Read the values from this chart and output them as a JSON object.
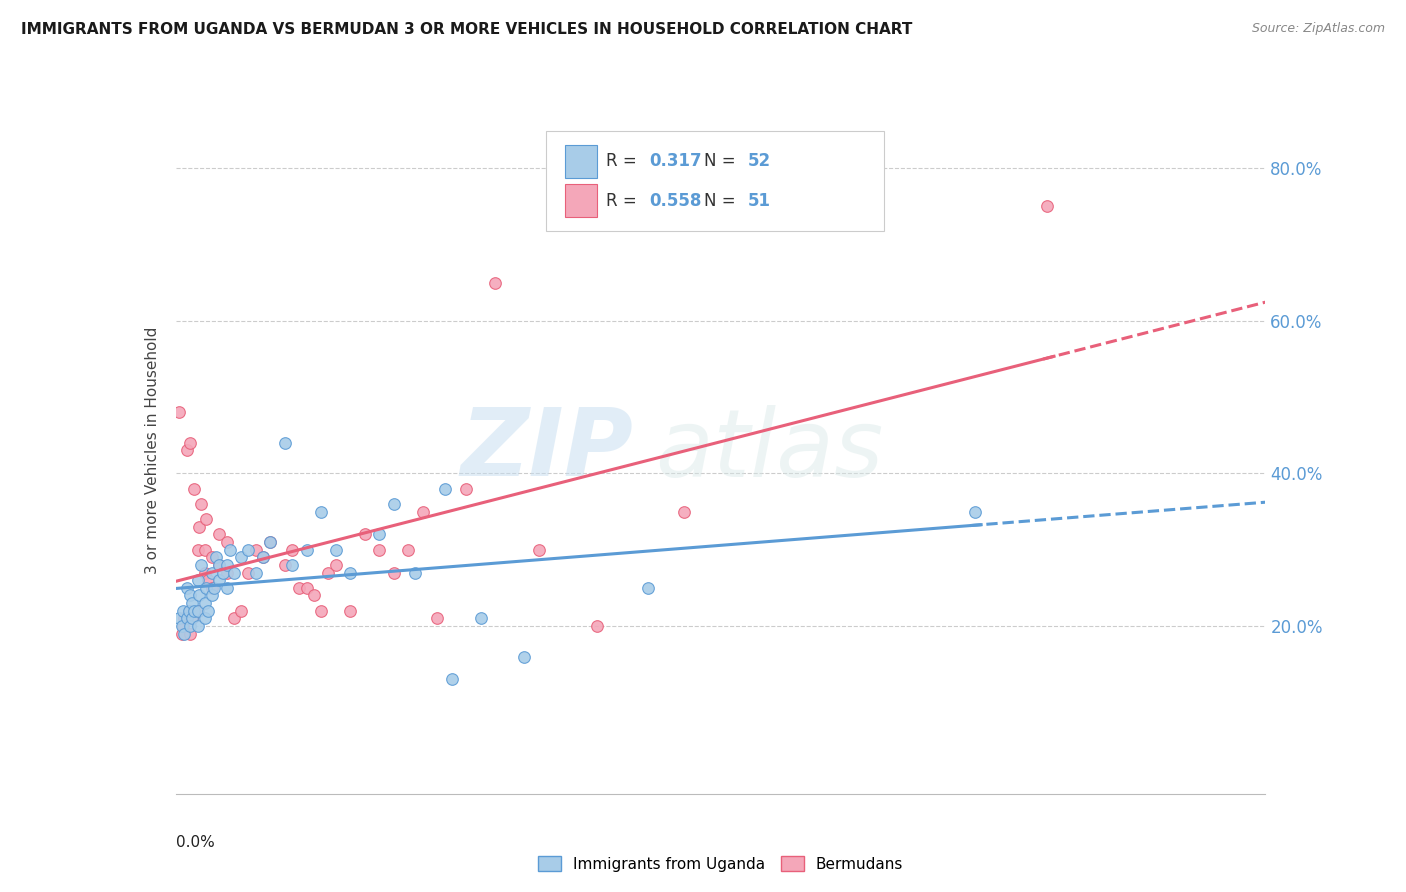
{
  "title": "IMMIGRANTS FROM UGANDA VS BERMUDAN 3 OR MORE VEHICLES IN HOUSEHOLD CORRELATION CHART",
  "source": "Source: ZipAtlas.com",
  "ylabel": "3 or more Vehicles in Household",
  "legend_label1": "Immigrants from Uganda",
  "legend_label2": "Bermudans",
  "r1": "0.317",
  "n1": "52",
  "r2": "0.558",
  "n2": "51",
  "color_blue": "#a8cce8",
  "color_blue_edge": "#5b9bd5",
  "color_pink": "#f4a7b9",
  "color_pink_edge": "#e8607a",
  "color_reg_blue": "#5b9bd5",
  "color_reg_pink": "#e8607a",
  "xmin": 0.0,
  "xmax": 0.15,
  "ymin": -0.02,
  "ymax": 0.88,
  "ytick_vals": [
    0.2,
    0.4,
    0.6,
    0.8
  ],
  "ytick_labels": [
    "20.0%",
    "40.0%",
    "60.0%",
    "80.0%"
  ],
  "watermark_zip": "ZIP",
  "watermark_atlas": "atlas",
  "uganda_x": [
    0.0005,
    0.0008,
    0.001,
    0.0012,
    0.0015,
    0.0015,
    0.0018,
    0.002,
    0.002,
    0.0022,
    0.0022,
    0.0025,
    0.003,
    0.003,
    0.003,
    0.0032,
    0.0035,
    0.004,
    0.004,
    0.0042,
    0.0045,
    0.005,
    0.005,
    0.0052,
    0.0055,
    0.006,
    0.006,
    0.0065,
    0.007,
    0.007,
    0.0075,
    0.008,
    0.009,
    0.01,
    0.011,
    0.012,
    0.013,
    0.015,
    0.016,
    0.018,
    0.02,
    0.022,
    0.024,
    0.028,
    0.03,
    0.033,
    0.037,
    0.038,
    0.042,
    0.048,
    0.065,
    0.11
  ],
  "uganda_y": [
    0.21,
    0.2,
    0.22,
    0.19,
    0.21,
    0.25,
    0.22,
    0.2,
    0.24,
    0.21,
    0.23,
    0.22,
    0.2,
    0.22,
    0.26,
    0.24,
    0.28,
    0.21,
    0.23,
    0.25,
    0.22,
    0.24,
    0.27,
    0.25,
    0.29,
    0.26,
    0.28,
    0.27,
    0.25,
    0.28,
    0.3,
    0.27,
    0.29,
    0.3,
    0.27,
    0.29,
    0.31,
    0.44,
    0.28,
    0.3,
    0.35,
    0.3,
    0.27,
    0.32,
    0.36,
    0.27,
    0.38,
    0.13,
    0.21,
    0.16,
    0.25,
    0.35
  ],
  "bermuda_x": [
    0.0005,
    0.0008,
    0.001,
    0.0012,
    0.0015,
    0.0018,
    0.002,
    0.002,
    0.0022,
    0.0025,
    0.003,
    0.003,
    0.0032,
    0.0035,
    0.004,
    0.004,
    0.0042,
    0.0045,
    0.005,
    0.005,
    0.006,
    0.006,
    0.007,
    0.007,
    0.008,
    0.009,
    0.01,
    0.011,
    0.012,
    0.013,
    0.015,
    0.016,
    0.017,
    0.018,
    0.019,
    0.02,
    0.021,
    0.022,
    0.024,
    0.026,
    0.028,
    0.03,
    0.032,
    0.034,
    0.036,
    0.04,
    0.044,
    0.05,
    0.058,
    0.07,
    0.12
  ],
  "bermuda_y": [
    0.48,
    0.19,
    0.2,
    0.21,
    0.43,
    0.22,
    0.44,
    0.19,
    0.21,
    0.38,
    0.22,
    0.3,
    0.33,
    0.36,
    0.27,
    0.3,
    0.34,
    0.26,
    0.25,
    0.29,
    0.28,
    0.32,
    0.27,
    0.31,
    0.21,
    0.22,
    0.27,
    0.3,
    0.29,
    0.31,
    0.28,
    0.3,
    0.25,
    0.25,
    0.24,
    0.22,
    0.27,
    0.28,
    0.22,
    0.32,
    0.3,
    0.27,
    0.3,
    0.35,
    0.21,
    0.38,
    0.65,
    0.3,
    0.2,
    0.35,
    0.75
  ]
}
